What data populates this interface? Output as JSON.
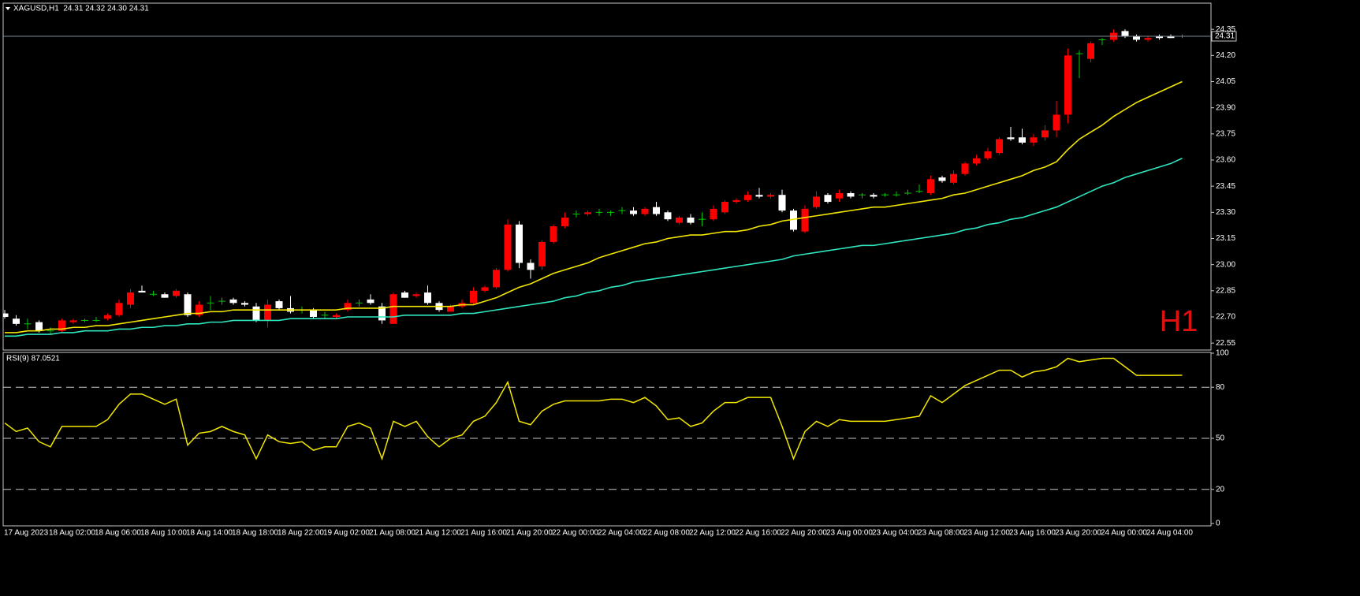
{
  "chart_data": [
    {
      "type": "candlestick",
      "title": "XAGUSD,H1  24.31 24.32 24.30 24.31",
      "annotation": "H1",
      "categories": [
        "17 Aug 2023",
        null,
        null,
        null,
        "18 Aug 02:00",
        null,
        null,
        null,
        "18 Aug 06:00",
        null,
        null,
        null,
        "18 Aug 10:00",
        null,
        null,
        null,
        "18 Aug 14:00",
        null,
        null,
        null,
        "18 Aug 18:00",
        null,
        null,
        null,
        "18 Aug 22:00",
        null,
        null,
        null,
        "19 Aug 02:00",
        null,
        null,
        null,
        "21 Aug 08:00",
        null,
        null,
        null,
        "21 Aug 12:00",
        null,
        null,
        null,
        "21 Aug 16:00",
        null,
        null,
        null,
        "21 Aug 20:00",
        null,
        null,
        null,
        "22 Aug 00:00",
        null,
        null,
        null,
        "22 Aug 04:00",
        null,
        null,
        null,
        "22 Aug 08:00",
        null,
        null,
        null,
        "22 Aug 12:00",
        null,
        null,
        null,
        "22 Aug 16:00",
        null,
        null,
        null,
        "22 Aug 20:00",
        null,
        null,
        null,
        "23 Aug 00:00",
        null,
        null,
        null,
        "23 Aug 04:00",
        null,
        null,
        null,
        "23 Aug 08:00",
        null,
        null,
        null,
        "23 Aug 12:00",
        null,
        null,
        null,
        "23 Aug 16:00",
        null,
        null,
        null,
        "23 Aug 20:00",
        null,
        null,
        null,
        "24 Aug 00:00",
        null,
        null,
        null,
        "24 Aug 04:00",
        null,
        null,
        null
      ],
      "open": [
        22.72,
        22.69,
        22.66,
        22.67,
        22.62,
        22.62,
        22.67,
        22.68,
        22.68,
        22.69,
        22.71,
        22.77,
        22.85,
        22.83,
        22.83,
        22.82,
        22.83,
        22.71,
        22.78,
        22.79,
        22.8,
        22.78,
        22.76,
        22.68,
        22.79,
        22.75,
        22.74,
        22.74,
        22.71,
        22.7,
        22.74,
        22.78,
        22.8,
        22.76,
        22.66,
        22.84,
        22.82,
        22.84,
        22.78,
        22.73,
        22.76,
        22.78,
        22.85,
        22.87,
        22.97,
        23.23,
        23.01,
        22.99,
        23.13,
        23.22,
        23.29,
        23.29,
        23.3,
        23.3,
        23.31,
        23.31,
        23.29,
        23.33,
        23.3,
        23.24,
        23.27,
        23.26,
        23.26,
        23.3,
        23.36,
        23.37,
        23.4,
        23.39,
        23.4,
        23.31,
        23.19,
        23.33,
        23.4,
        23.38,
        23.41,
        23.4,
        23.4,
        23.4,
        23.4,
        23.41,
        23.42,
        23.41,
        23.5,
        23.47,
        23.52,
        23.58,
        23.61,
        23.64,
        23.73,
        23.73,
        23.7,
        23.73,
        23.77,
        23.86,
        24.21,
        24.18,
        24.29,
        24.29,
        24.34,
        24.31,
        24.29,
        24.31,
        24.31,
        24.31
      ],
      "high": [
        22.74,
        22.71,
        22.69,
        22.68,
        22.64,
        22.69,
        22.69,
        22.69,
        22.7,
        22.72,
        22.8,
        22.86,
        22.88,
        22.85,
        22.84,
        22.86,
        22.84,
        22.79,
        22.82,
        22.81,
        22.81,
        22.79,
        22.78,
        22.8,
        22.8,
        22.82,
        22.76,
        22.75,
        22.73,
        22.72,
        22.8,
        22.8,
        22.83,
        22.78,
        22.84,
        22.85,
        22.84,
        22.88,
        22.79,
        22.77,
        22.8,
        22.87,
        22.88,
        22.98,
        23.26,
        23.25,
        23.03,
        23.14,
        23.23,
        23.3,
        23.31,
        23.31,
        23.32,
        23.31,
        23.33,
        23.33,
        23.33,
        23.36,
        23.31,
        23.28,
        23.29,
        23.3,
        23.34,
        23.37,
        23.38,
        23.42,
        23.44,
        23.41,
        23.43,
        23.32,
        23.34,
        23.42,
        23.41,
        23.43,
        23.42,
        23.41,
        23.41,
        23.41,
        23.42,
        23.43,
        23.46,
        23.51,
        23.51,
        23.54,
        23.59,
        23.63,
        23.67,
        23.73,
        23.79,
        23.78,
        23.75,
        23.8,
        23.94,
        24.24,
        24.23,
        24.28,
        24.3,
        24.35,
        24.35,
        24.32,
        24.31,
        24.32,
        24.32,
        24.32
      ],
      "low": [
        22.69,
        22.65,
        22.63,
        22.61,
        22.6,
        22.61,
        22.66,
        22.67,
        22.67,
        22.68,
        22.7,
        22.75,
        22.84,
        22.82,
        22.81,
        22.81,
        22.7,
        22.7,
        22.74,
        22.77,
        22.77,
        22.76,
        22.67,
        22.64,
        22.74,
        22.72,
        22.72,
        22.69,
        22.69,
        22.69,
        22.73,
        22.76,
        22.77,
        22.66,
        22.66,
        22.81,
        22.81,
        22.77,
        22.73,
        22.73,
        22.75,
        22.77,
        22.84,
        22.86,
        22.96,
        22.98,
        22.92,
        22.97,
        23.12,
        23.21,
        23.27,
        23.28,
        23.28,
        23.28,
        23.29,
        23.28,
        23.28,
        23.28,
        23.25,
        23.23,
        23.23,
        23.22,
        23.25,
        23.29,
        23.35,
        23.36,
        23.38,
        23.38,
        23.3,
        23.19,
        23.18,
        23.32,
        23.35,
        23.36,
        23.38,
        23.38,
        23.38,
        23.39,
        23.39,
        23.4,
        23.41,
        23.4,
        23.47,
        23.46,
        23.51,
        23.57,
        23.6,
        23.63,
        23.71,
        23.69,
        23.68,
        23.71,
        23.73,
        23.81,
        24.07,
        24.16,
        24.26,
        24.28,
        24.3,
        24.28,
        24.28,
        24.29,
        24.3,
        24.3
      ],
      "close": [
        22.7,
        22.66,
        22.66,
        22.62,
        22.62,
        22.68,
        22.68,
        22.68,
        22.68,
        22.71,
        22.78,
        22.84,
        22.84,
        22.83,
        22.81,
        22.85,
        22.71,
        22.77,
        22.78,
        22.79,
        22.78,
        22.77,
        22.68,
        22.77,
        22.75,
        22.73,
        22.74,
        22.7,
        22.71,
        22.71,
        22.78,
        22.78,
        22.78,
        22.68,
        22.83,
        22.81,
        22.83,
        22.78,
        22.74,
        22.76,
        22.78,
        22.85,
        22.87,
        22.97,
        23.23,
        23.01,
        22.97,
        23.13,
        23.22,
        23.27,
        23.29,
        23.3,
        23.3,
        23.3,
        23.31,
        23.29,
        23.32,
        23.29,
        23.26,
        23.27,
        23.24,
        23.26,
        23.32,
        23.36,
        23.37,
        23.4,
        23.39,
        23.4,
        23.31,
        23.2,
        23.32,
        23.39,
        23.36,
        23.41,
        23.39,
        23.4,
        23.39,
        23.4,
        23.4,
        23.41,
        23.42,
        23.49,
        23.48,
        23.52,
        23.58,
        23.61,
        23.65,
        23.72,
        23.72,
        23.7,
        23.73,
        23.77,
        23.86,
        24.2,
        24.21,
        24.27,
        24.29,
        24.33,
        24.31,
        24.29,
        24.3,
        24.3,
        24.3,
        24.31
      ],
      "up_color": "#ff0000",
      "down_color": "#ffffff",
      "doji_color": "#00c800",
      "overlays": [
        {
          "color": "#f2e600",
          "values": [
            22.61,
            22.61,
            22.62,
            22.62,
            22.63,
            22.63,
            22.64,
            22.64,
            22.65,
            22.65,
            22.66,
            22.67,
            22.68,
            22.69,
            22.7,
            22.71,
            22.72,
            22.72,
            22.73,
            22.73,
            22.74,
            22.74,
            22.74,
            22.74,
            22.74,
            22.74,
            22.74,
            22.74,
            22.74,
            22.74,
            22.75,
            22.75,
            22.75,
            22.75,
            22.76,
            22.76,
            22.76,
            22.76,
            22.76,
            22.76,
            22.77,
            22.77,
            22.79,
            22.81,
            22.84,
            22.87,
            22.89,
            22.92,
            22.95,
            22.97,
            22.99,
            23.01,
            23.04,
            23.06,
            23.08,
            23.1,
            23.12,
            23.13,
            23.15,
            23.16,
            23.17,
            23.17,
            23.18,
            23.19,
            23.19,
            23.2,
            23.22,
            23.23,
            23.25,
            23.26,
            23.27,
            23.28,
            23.29,
            23.3,
            23.31,
            23.32,
            23.33,
            23.33,
            23.34,
            23.35,
            23.36,
            23.37,
            23.38,
            23.4,
            23.41,
            23.43,
            23.45,
            23.47,
            23.49,
            23.51,
            23.54,
            23.56,
            23.59,
            23.66,
            23.72,
            23.76,
            23.8,
            23.85,
            23.89,
            23.93,
            23.96,
            23.99,
            24.02,
            24.05
          ]
        },
        {
          "color": "#2ee6c0",
          "values": [
            22.59,
            22.59,
            22.6,
            22.6,
            22.6,
            22.61,
            22.61,
            22.62,
            22.62,
            22.62,
            22.63,
            22.63,
            22.64,
            22.64,
            22.65,
            22.65,
            22.66,
            22.66,
            22.67,
            22.67,
            22.68,
            22.68,
            22.68,
            22.68,
            22.68,
            22.69,
            22.69,
            22.69,
            22.69,
            22.69,
            22.7,
            22.7,
            22.7,
            22.7,
            22.7,
            22.71,
            22.71,
            22.71,
            22.71,
            22.71,
            22.72,
            22.72,
            22.73,
            22.74,
            22.75,
            22.76,
            22.77,
            22.78,
            22.79,
            22.81,
            22.82,
            22.84,
            22.85,
            22.87,
            22.88,
            22.9,
            22.91,
            22.92,
            22.93,
            22.94,
            22.95,
            22.96,
            22.97,
            22.98,
            22.99,
            23.0,
            23.01,
            23.02,
            23.03,
            23.05,
            23.06,
            23.07,
            23.08,
            23.09,
            23.1,
            23.11,
            23.11,
            23.12,
            23.13,
            23.14,
            23.15,
            23.16,
            23.17,
            23.18,
            23.2,
            23.21,
            23.23,
            23.24,
            23.26,
            23.27,
            23.29,
            23.31,
            23.33,
            23.36,
            23.39,
            23.42,
            23.45,
            23.47,
            23.5,
            23.52,
            23.54,
            23.56,
            23.58,
            23.61
          ]
        }
      ],
      "ylim": [
        22.51,
        24.5
      ],
      "yticks": [
        22.55,
        {
          "value": 22.7,
          "label": "22.70"
        },
        22.85,
        {
          "value": 23,
          "label": "23.00"
        },
        23.15,
        {
          "value": 23.3,
          "label": "23.30"
        },
        23.45,
        {
          "value": 23.6,
          "label": "23.60"
        },
        23.75,
        {
          "value": 23.9,
          "label": "23.90"
        },
        24.05,
        {
          "value": 24.2,
          "label": "24.20"
        },
        24.35
      ]
    },
    {
      "type": "line",
      "title": "RSI(9) 87.0521",
      "color": "#f2e600",
      "values": [
        59,
        54,
        56,
        48,
        45,
        57,
        57,
        57,
        57,
        61,
        70,
        76,
        76,
        73,
        70,
        73,
        46,
        53,
        54,
        57,
        54,
        52,
        38,
        52,
        48,
        47,
        48,
        43,
        45,
        45,
        57,
        59,
        56,
        38,
        60,
        57,
        60,
        51,
        45,
        50,
        52,
        60,
        63,
        71,
        83,
        60,
        58,
        66,
        70,
        72,
        72,
        72,
        72,
        73,
        73,
        71,
        74,
        69,
        61,
        62,
        57,
        59,
        66,
        71,
        71,
        74,
        74,
        74,
        57,
        38,
        54,
        60,
        57,
        61,
        60,
        60,
        60,
        60,
        61,
        62,
        63,
        75,
        71,
        76,
        81,
        84,
        87,
        90,
        90,
        86,
        89,
        90,
        92,
        97,
        95,
        96,
        97,
        97,
        92,
        87,
        87,
        87,
        87,
        87.0521
      ],
      "ylim": [
        0,
        100
      ],
      "yticks": [
        0,
        20,
        50,
        80,
        100
      ],
      "levels": [
        20,
        50,
        80
      ]
    }
  ]
}
